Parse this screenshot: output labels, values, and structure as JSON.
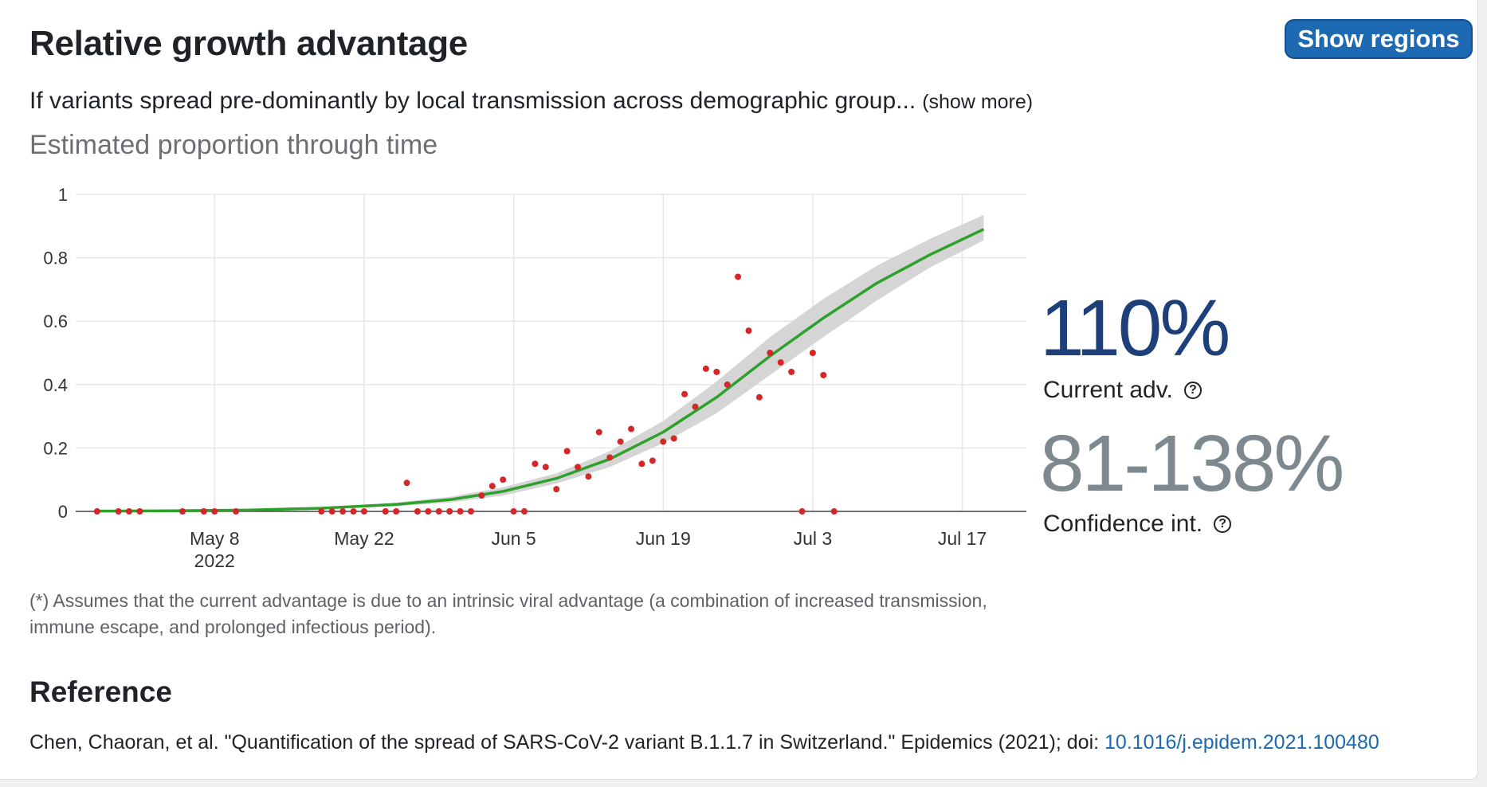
{
  "header": {
    "title": "Relative growth advantage",
    "show_regions_label": "Show regions",
    "description": "If variants spread pre-dominantly by local transmission across demographic group...",
    "show_more_label": "(show more)",
    "subtitle": "Estimated proportion through time"
  },
  "stats": {
    "current_value": "110%",
    "current_label": "Current adv.",
    "ci_value": "81-138%",
    "ci_label": "Confidence int.",
    "help_glyph": "?"
  },
  "footnote": "(*) Assumes that the current advantage is due to an intrinsic viral advantage (a combination of increased transmission, immune escape, and prolonged infectious period).",
  "reference": {
    "heading": "Reference",
    "citation": "Chen, Chaoran, et al. \"Quantification of the spread of SARS-CoV-2 variant B.1.1.7 in Switzerland.\" Epidemics (2021); doi: ",
    "doi": "10.1016/j.epidem.2021.100480"
  },
  "colors": {
    "accent": "#1d69b2",
    "fit_line": "#2ea02c",
    "ci_band": "#d5d5d5",
    "points": "#d62728",
    "current_value": "#1d3f7a",
    "ci_value": "#7d898f"
  },
  "chart_data": {
    "type": "line",
    "xlabel": "",
    "ylabel": "",
    "x_range": [
      "2022-04-25",
      "2022-07-23"
    ],
    "ylim": [
      0,
      1
    ],
    "x_ticks": [
      {
        "date": "2022-05-08",
        "label": "May 8",
        "sublabel": "2022"
      },
      {
        "date": "2022-05-22",
        "label": "May 22",
        "sublabel": ""
      },
      {
        "date": "2022-06-05",
        "label": "Jun 5",
        "sublabel": ""
      },
      {
        "date": "2022-06-19",
        "label": "Jun 19",
        "sublabel": ""
      },
      {
        "date": "2022-07-03",
        "label": "Jul 3",
        "sublabel": ""
      },
      {
        "date": "2022-07-17",
        "label": "Jul 17",
        "sublabel": ""
      }
    ],
    "y_ticks": [
      {
        "value": 0,
        "label": "0"
      },
      {
        "value": 0.2,
        "label": "0.2"
      },
      {
        "value": 0.4,
        "label": "0.4"
      },
      {
        "value": 0.6,
        "label": "0.6"
      },
      {
        "value": 0.8,
        "label": "0.8"
      },
      {
        "value": 1,
        "label": "1"
      }
    ],
    "grid": true,
    "fit": {
      "x": [
        "2022-04-27",
        "2022-05-04",
        "2022-05-11",
        "2022-05-18",
        "2022-05-25",
        "2022-05-30",
        "2022-06-04",
        "2022-06-09",
        "2022-06-14",
        "2022-06-19",
        "2022-06-24",
        "2022-06-29",
        "2022-07-04",
        "2022-07-09",
        "2022-07-14",
        "2022-07-19"
      ],
      "y": [
        0.001,
        0.002,
        0.004,
        0.01,
        0.022,
        0.037,
        0.063,
        0.104,
        0.165,
        0.25,
        0.36,
        0.49,
        0.61,
        0.72,
        0.81,
        0.89
      ],
      "lower": [
        0.0005,
        0.001,
        0.003,
        0.007,
        0.016,
        0.028,
        0.05,
        0.088,
        0.14,
        0.215,
        0.31,
        0.43,
        0.55,
        0.665,
        0.77,
        0.855
      ],
      "upper": [
        0.002,
        0.003,
        0.006,
        0.013,
        0.028,
        0.046,
        0.076,
        0.12,
        0.19,
        0.285,
        0.41,
        0.55,
        0.67,
        0.775,
        0.86,
        0.935
      ]
    },
    "points": [
      {
        "x": "2022-04-27",
        "y": 0
      },
      {
        "x": "2022-04-29",
        "y": 0
      },
      {
        "x": "2022-04-30",
        "y": 0
      },
      {
        "x": "2022-05-01",
        "y": 0
      },
      {
        "x": "2022-05-05",
        "y": 0
      },
      {
        "x": "2022-05-07",
        "y": 0
      },
      {
        "x": "2022-05-08",
        "y": 0
      },
      {
        "x": "2022-05-10",
        "y": 0
      },
      {
        "x": "2022-05-18",
        "y": 0
      },
      {
        "x": "2022-05-19",
        "y": 0
      },
      {
        "x": "2022-05-20",
        "y": 0
      },
      {
        "x": "2022-05-21",
        "y": 0
      },
      {
        "x": "2022-05-22",
        "y": 0
      },
      {
        "x": "2022-05-24",
        "y": 0
      },
      {
        "x": "2022-05-25",
        "y": 0
      },
      {
        "x": "2022-05-26",
        "y": 0.09
      },
      {
        "x": "2022-05-27",
        "y": 0
      },
      {
        "x": "2022-05-28",
        "y": 0
      },
      {
        "x": "2022-05-29",
        "y": 0
      },
      {
        "x": "2022-05-30",
        "y": 0
      },
      {
        "x": "2022-05-31",
        "y": 0
      },
      {
        "x": "2022-06-01",
        "y": 0
      },
      {
        "x": "2022-06-02",
        "y": 0.05
      },
      {
        "x": "2022-06-03",
        "y": 0.08
      },
      {
        "x": "2022-06-04",
        "y": 0.1
      },
      {
        "x": "2022-06-05",
        "y": 0
      },
      {
        "x": "2022-06-06",
        "y": 0
      },
      {
        "x": "2022-06-07",
        "y": 0.15
      },
      {
        "x": "2022-06-08",
        "y": 0.14
      },
      {
        "x": "2022-06-09",
        "y": 0.07
      },
      {
        "x": "2022-06-10",
        "y": 0.19
      },
      {
        "x": "2022-06-11",
        "y": 0.14
      },
      {
        "x": "2022-06-12",
        "y": 0.11
      },
      {
        "x": "2022-06-13",
        "y": 0.25
      },
      {
        "x": "2022-06-14",
        "y": 0.17
      },
      {
        "x": "2022-06-15",
        "y": 0.22
      },
      {
        "x": "2022-06-16",
        "y": 0.26
      },
      {
        "x": "2022-06-17",
        "y": 0.15
      },
      {
        "x": "2022-06-18",
        "y": 0.16
      },
      {
        "x": "2022-06-19",
        "y": 0.22
      },
      {
        "x": "2022-06-20",
        "y": 0.23
      },
      {
        "x": "2022-06-21",
        "y": 0.37
      },
      {
        "x": "2022-06-22",
        "y": 0.33
      },
      {
        "x": "2022-06-23",
        "y": 0.45
      },
      {
        "x": "2022-06-24",
        "y": 0.44
      },
      {
        "x": "2022-06-25",
        "y": 0.4
      },
      {
        "x": "2022-06-26",
        "y": 0.74
      },
      {
        "x": "2022-06-27",
        "y": 0.57
      },
      {
        "x": "2022-06-28",
        "y": 0.36
      },
      {
        "x": "2022-06-29",
        "y": 0.5
      },
      {
        "x": "2022-06-30",
        "y": 0.47
      },
      {
        "x": "2022-07-01",
        "y": 0.44
      },
      {
        "x": "2022-07-02",
        "y": 0
      },
      {
        "x": "2022-07-03",
        "y": 0.5
      },
      {
        "x": "2022-07-04",
        "y": 0.43
      },
      {
        "x": "2022-07-05",
        "y": 0
      }
    ]
  }
}
